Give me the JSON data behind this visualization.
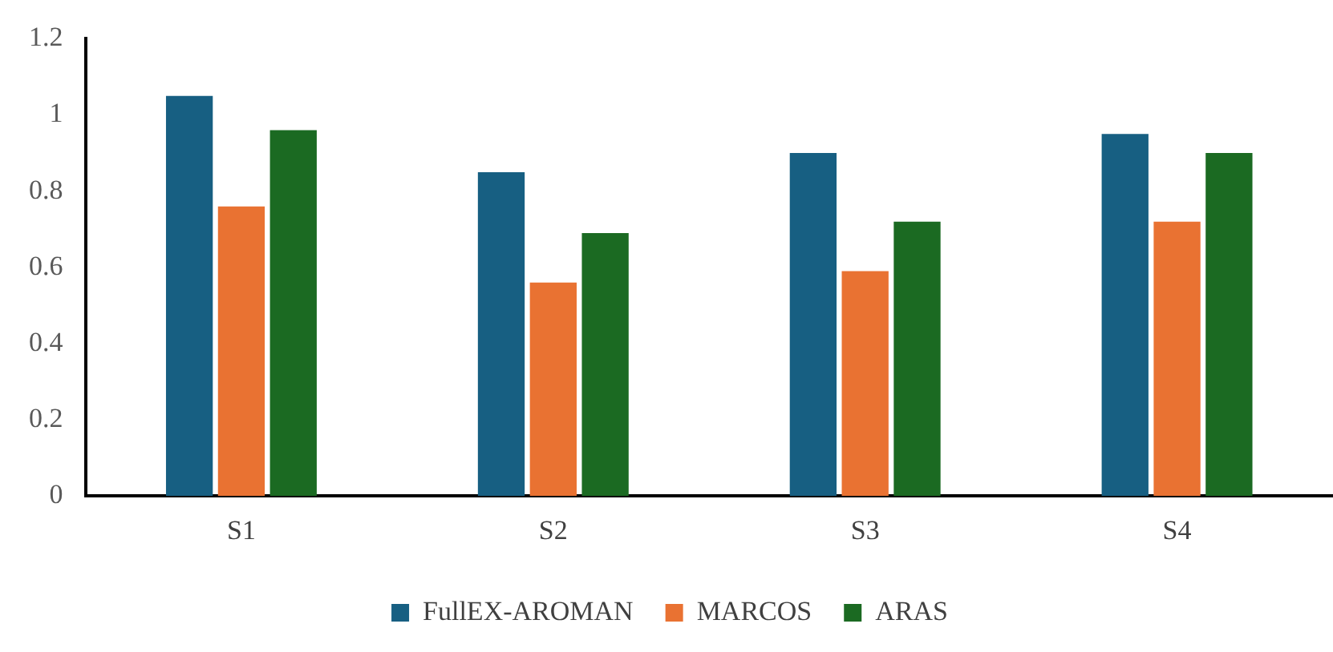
{
  "chart_data": {
    "type": "bar",
    "categories": [
      "S1",
      "S2",
      "S3",
      "S4"
    ],
    "series": [
      {
        "name": "FullEX-AROMAN",
        "color": "#175f82",
        "values": [
          1.05,
          0.85,
          0.9,
          0.95
        ]
      },
      {
        "name": "MARCOS",
        "color": "#e97232",
        "values": [
          0.76,
          0.56,
          0.59,
          0.72
        ]
      },
      {
        "name": "ARAS",
        "color": "#1b6a22",
        "values": [
          0.96,
          0.69,
          0.72,
          0.9
        ]
      }
    ],
    "ylim": [
      0,
      1.2
    ],
    "yticks": [
      0,
      0.2,
      0.4,
      0.6,
      0.8,
      1,
      1.2
    ],
    "grid": false,
    "legend": "bottom"
  }
}
